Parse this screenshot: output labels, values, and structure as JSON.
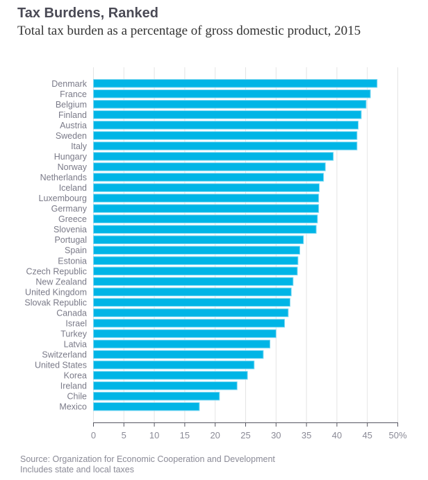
{
  "header": {
    "title": "Tax Burdens, Ranked",
    "subtitle": "Total tax burden as a percentage of gross domestic product, 2015"
  },
  "footer": {
    "source": "Source: Organization for Economic Cooperation and Development",
    "note": "Includes state and local taxes"
  },
  "colors": {
    "bar": "#00b5e6",
    "bar_edge": "#7fd8f2",
    "grid": "#e4e4e4",
    "axis": "#555560",
    "label": "#7a7a88"
  },
  "chart_data": {
    "type": "bar",
    "orientation": "horizontal",
    "title": "Tax Burdens, Ranked",
    "subtitle": "Total tax burden as a percentage of gross domestic product, 2015",
    "xlabel": "",
    "ylabel": "",
    "xlim": [
      0,
      50
    ],
    "xticks": [
      0,
      5,
      10,
      15,
      20,
      25,
      30,
      35,
      40,
      45,
      50
    ],
    "xtick_labels": [
      "0",
      "5",
      "10",
      "15",
      "20",
      "25",
      "30",
      "35",
      "40",
      "45",
      "50%"
    ],
    "grid": true,
    "categories": [
      "Denmark",
      "France",
      "Belgium",
      "Finland",
      "Austria",
      "Sweden",
      "Italy",
      "Hungary",
      "Norway",
      "Netherlands",
      "Iceland",
      "Luxembourg",
      "Germany",
      "Greece",
      "Slovenia",
      "Portugal",
      "Spain",
      "Estonia",
      "Czech Republic",
      "New Zealand",
      "United Kingdom",
      "Slovak Republic",
      "Canada",
      "Israel",
      "Turkey",
      "Latvia",
      "Switzerland",
      "United States",
      "Korea",
      "Ireland",
      "Chile",
      "Mexico"
    ],
    "values": [
      46.6,
      45.5,
      44.8,
      44.0,
      43.5,
      43.3,
      43.3,
      39.4,
      38.1,
      37.8,
      37.1,
      37.0,
      37.0,
      36.8,
      36.6,
      34.5,
      33.9,
      33.6,
      33.5,
      32.8,
      32.5,
      32.3,
      32.0,
      31.4,
      30.0,
      29.0,
      27.9,
      26.4,
      25.3,
      23.6,
      20.7,
      17.4
    ]
  }
}
